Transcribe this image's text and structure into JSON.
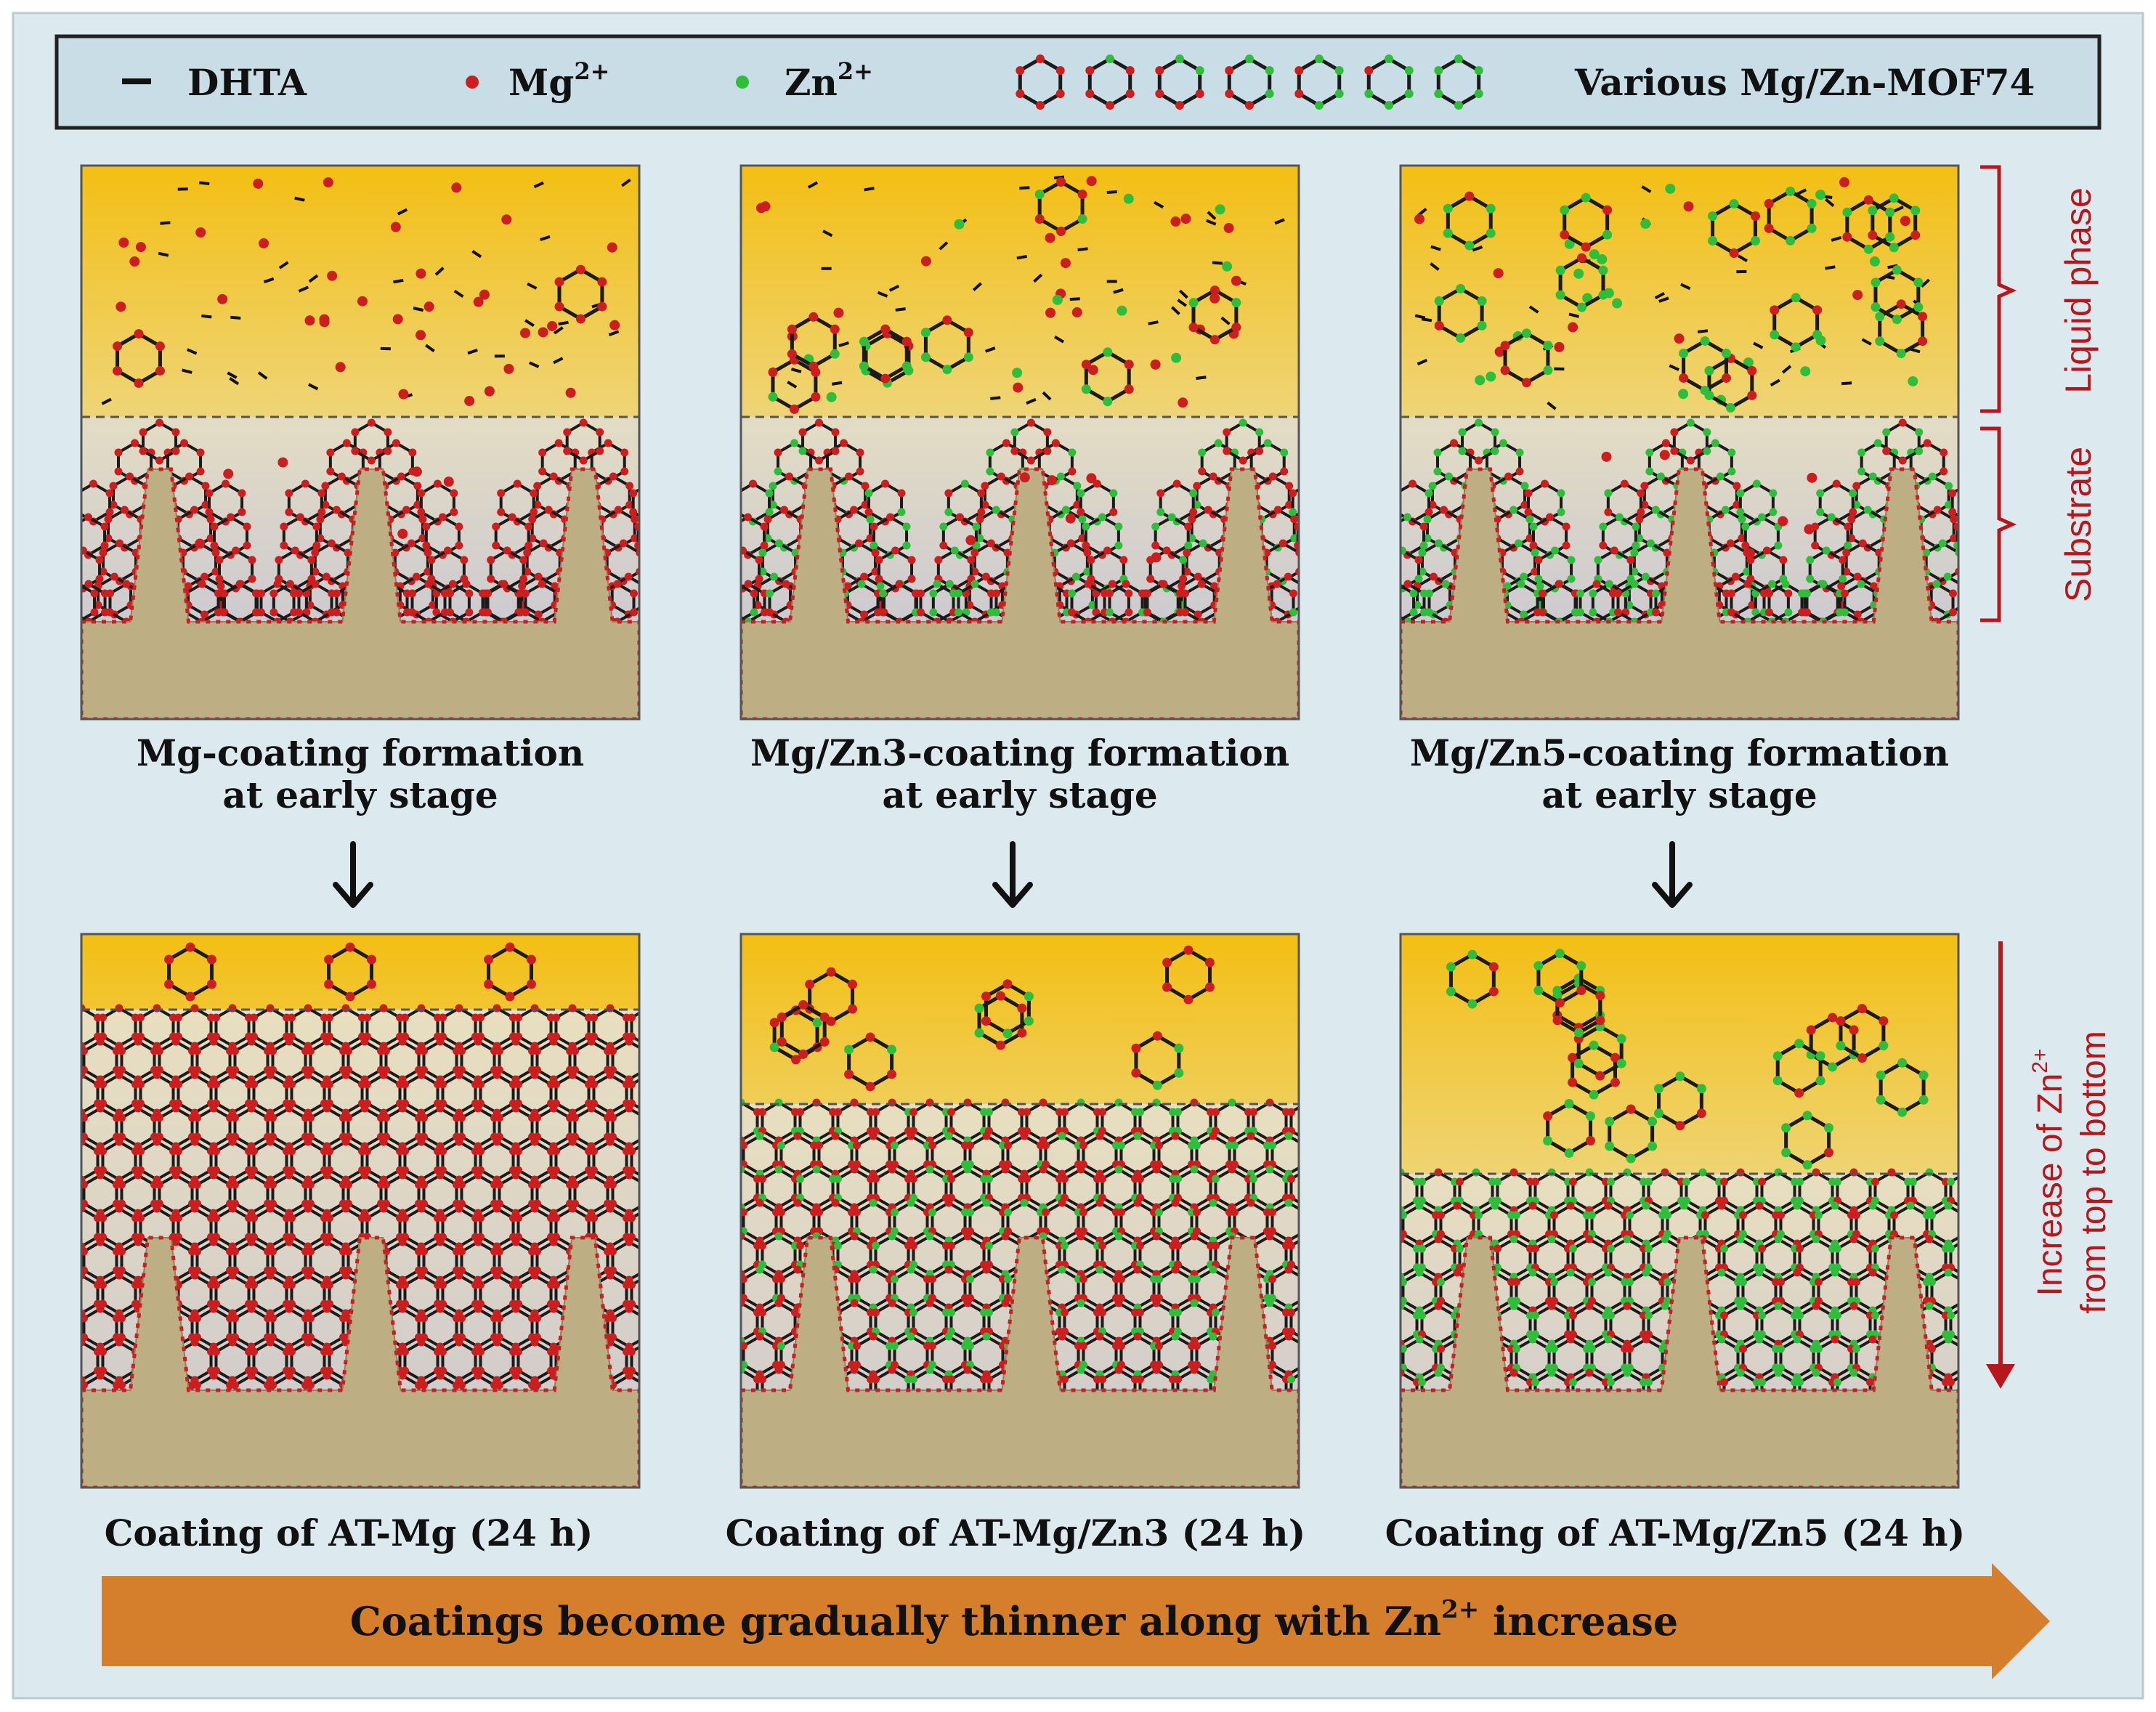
{
  "legend": {
    "dhta": "DHTA",
    "mg": "Mg",
    "mg_sup": "2+",
    "zn": "Zn",
    "zn_sup": "2+",
    "mof": "Various Mg/Zn-MOF74",
    "mof_zn_counts": [
      0,
      1,
      2,
      3,
      4,
      5,
      6
    ]
  },
  "colors": {
    "background": "#dce9ef",
    "mg_ion": "#cc1e1e",
    "zn_ion": "#2fbe3c",
    "liquid_top": "#f3bf14",
    "liquid_bottom": "#e6dcbf",
    "substrate_pore": "#c3c2d6",
    "substrate": "#bdae84",
    "annotation": "#b5171c",
    "arrow_band": "#d57e2c"
  },
  "panels": {
    "top": [
      {
        "id": "mg",
        "caption_line1": "Mg-coating formation",
        "caption_line2": "at early stage",
        "zn_level": 0
      },
      {
        "id": "mgzn3",
        "caption_line1": "Mg/Zn3-coating formation",
        "caption_line2": "at early stage",
        "zn_level": 1
      },
      {
        "id": "mgzn5",
        "caption_line1": "Mg/Zn5-coating formation",
        "caption_line2": "at early stage",
        "zn_level": 2
      }
    ],
    "bottom": [
      {
        "id": "mg",
        "caption": "Coating of AT-Mg (24 h)",
        "zn_level": 0
      },
      {
        "id": "mgzn3",
        "caption": "Coating of AT-Mg/Zn3 (24 h)",
        "zn_level": 1
      },
      {
        "id": "mgzn5",
        "caption": "Coating of AT-Mg/Zn5 (24 h)",
        "zn_level": 2
      }
    ]
  },
  "side_labels": {
    "liquid": "Liquid phase",
    "substrate": "Substrate",
    "increase_line1": "Increase of Zn",
    "increase_sup": "2+",
    "increase_line2": "from top to bottom"
  },
  "bottom_arrow": {
    "text": "Coatings become gradually thinner along with Zn",
    "sup": "2+",
    "text_end": " increase"
  }
}
